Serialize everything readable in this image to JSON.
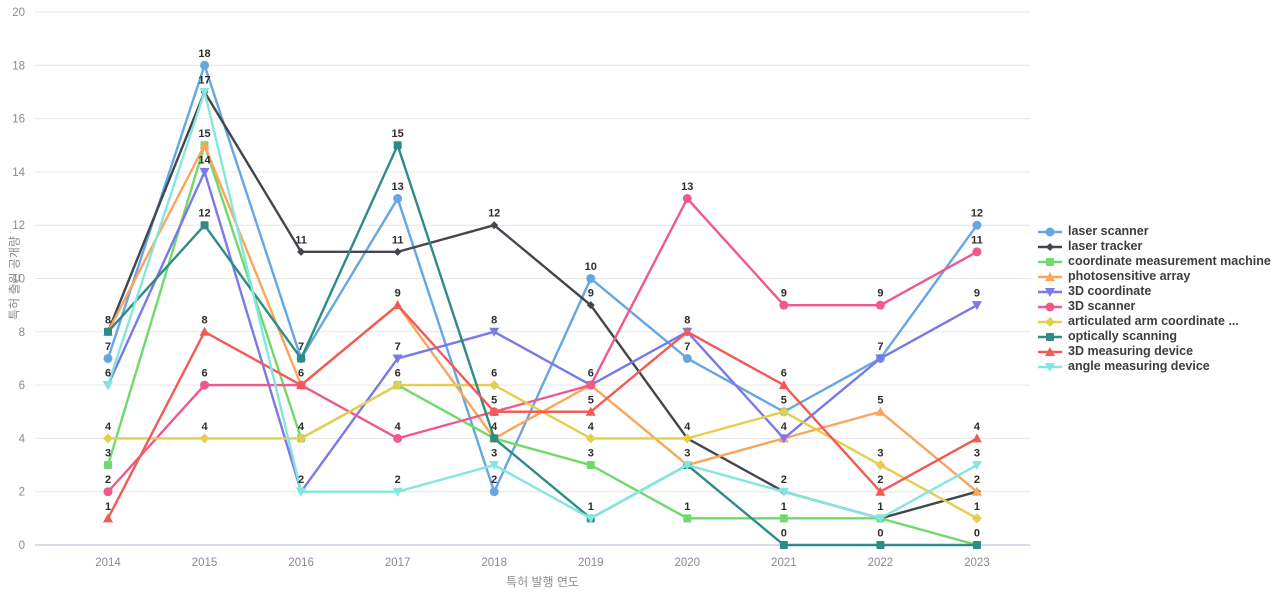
{
  "chart_data": {
    "type": "line",
    "title": "",
    "xlabel": "특허 발행 연도",
    "ylabel": "특허 출원 공개량",
    "x": [
      2014,
      2015,
      2016,
      2017,
      2018,
      2019,
      2020,
      2021,
      2022,
      2023
    ],
    "y_ticks": [
      0,
      2,
      4,
      6,
      8,
      10,
      12,
      14,
      16,
      18,
      20
    ],
    "ylim": [
      0,
      20
    ],
    "grid": true,
    "legend_position": "right-center",
    "colors": {
      "grid": "#e6e6e6",
      "axis_line": "#c7d3e6",
      "tick_text": "#8b8b8b",
      "point_label_text": "#2d2d2d",
      "legend_text": "#3d3d3d"
    },
    "series": [
      {
        "name": "laser scanner",
        "color": "#64a7e2",
        "marker": "circle",
        "values": [
          7,
          18,
          7,
          13,
          2,
          10,
          7,
          5,
          7,
          12
        ]
      },
      {
        "name": "laser tracker",
        "color": "#42464d",
        "marker": "diamond",
        "values": [
          8,
          17,
          11,
          11,
          12,
          9,
          4,
          2,
          1,
          2
        ]
      },
      {
        "name": "coordinate measurement machine",
        "color": "#70d96c",
        "marker": "square",
        "values": [
          3,
          15,
          4,
          6,
          4,
          3,
          1,
          1,
          1,
          0
        ]
      },
      {
        "name": "photosensitive array",
        "color": "#fba45c",
        "marker": "triangle-up",
        "values": [
          8,
          15,
          6,
          9,
          4,
          6,
          3,
          4,
          5,
          2
        ]
      },
      {
        "name": "3D coordinate",
        "color": "#7a79e8",
        "marker": "triangle-down",
        "values": [
          6,
          14,
          2,
          7,
          8,
          6,
          8,
          4,
          7,
          9
        ]
      },
      {
        "name": "3D scanner",
        "color": "#ef5a88",
        "marker": "circle",
        "values": [
          2,
          6,
          6,
          4,
          5,
          6,
          13,
          9,
          9,
          11
        ]
      },
      {
        "name": "articulated arm coordinate ...",
        "color": "#e3ce4f",
        "marker": "diamond",
        "values": [
          4,
          4,
          4,
          6,
          6,
          4,
          4,
          5,
          3,
          1
        ]
      },
      {
        "name": "optically scanning",
        "color": "#2e8b85",
        "marker": "square",
        "values": [
          8,
          12,
          7,
          15,
          4,
          1,
          3,
          0,
          0,
          0
        ]
      },
      {
        "name": "3D measuring device",
        "color": "#f15b55",
        "marker": "triangle-up",
        "values": [
          1,
          8,
          6,
          9,
          5,
          5,
          8,
          6,
          2,
          4
        ]
      },
      {
        "name": "angle measuring device",
        "color": "#84e6de",
        "marker": "triangle-down",
        "values": [
          6,
          17,
          2,
          2,
          3,
          1,
          3,
          2,
          1,
          3
        ]
      }
    ]
  }
}
